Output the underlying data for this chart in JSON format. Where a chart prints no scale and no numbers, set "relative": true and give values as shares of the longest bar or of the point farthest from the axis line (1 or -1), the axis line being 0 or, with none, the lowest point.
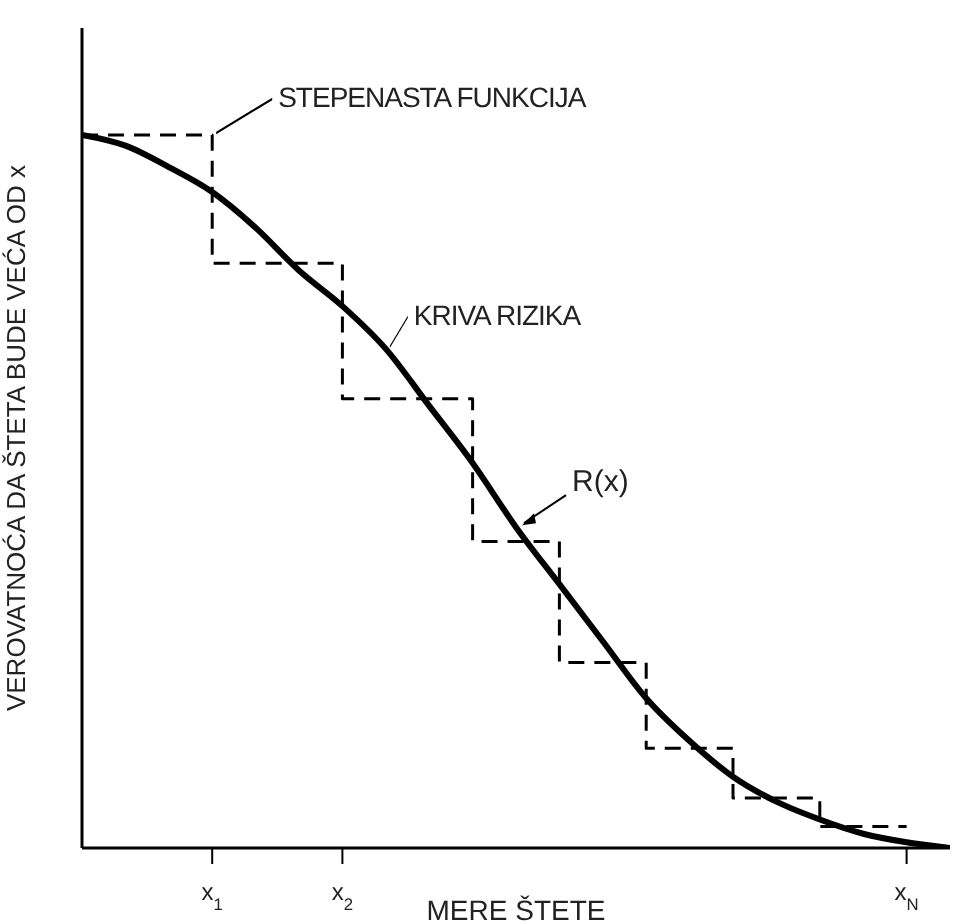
{
  "chart_data": {
    "type": "line",
    "relative": true,
    "xlabel": "MERE ŠTETE",
    "ylabel": "VEROVATNOĆA DA ŠTETA BUDE VEĆA OD x",
    "marker": "none",
    "legend": "top",
    "categories": [
      null,
      null,
      null,
      "x$_{1}$",
      null,
      null,
      "x$_{2}$",
      null,
      null,
      null,
      null,
      null,
      null,
      null,
      null,
      null,
      null,
      null,
      null,
      "x$_{N}$",
      null
    ],
    "annotations": [
      "R(x)"
    ],
    "series": [
      {
        "name": "STEPENASTA FUNKCIJA",
        "type": "step",
        "line_style": "dashed",
        "color": "#000000",
        "values": [
          1,
          1,
          1,
          0.82,
          0.82,
          0.82,
          0.63,
          0.63,
          0.63,
          0.43,
          0.43,
          0.26,
          0.26,
          0.14,
          0.14,
          0.07,
          0.07,
          0.03,
          0.03,
          0.03,
          null
        ]
      },
      {
        "name": "KRIVA RIZIKA",
        "type": "line",
        "line_style": "solid",
        "color": "#000000",
        "values": [
          1,
          0.985,
          0.955,
          0.92,
          0.87,
          0.81,
          0.76,
          0.7,
          0.62,
          0.54,
          0.45,
          0.37,
          0.29,
          0.21,
          0.15,
          0.1,
          0.065,
          0.04,
          0.02,
          0.008,
          0
        ]
      }
    ]
  }
}
